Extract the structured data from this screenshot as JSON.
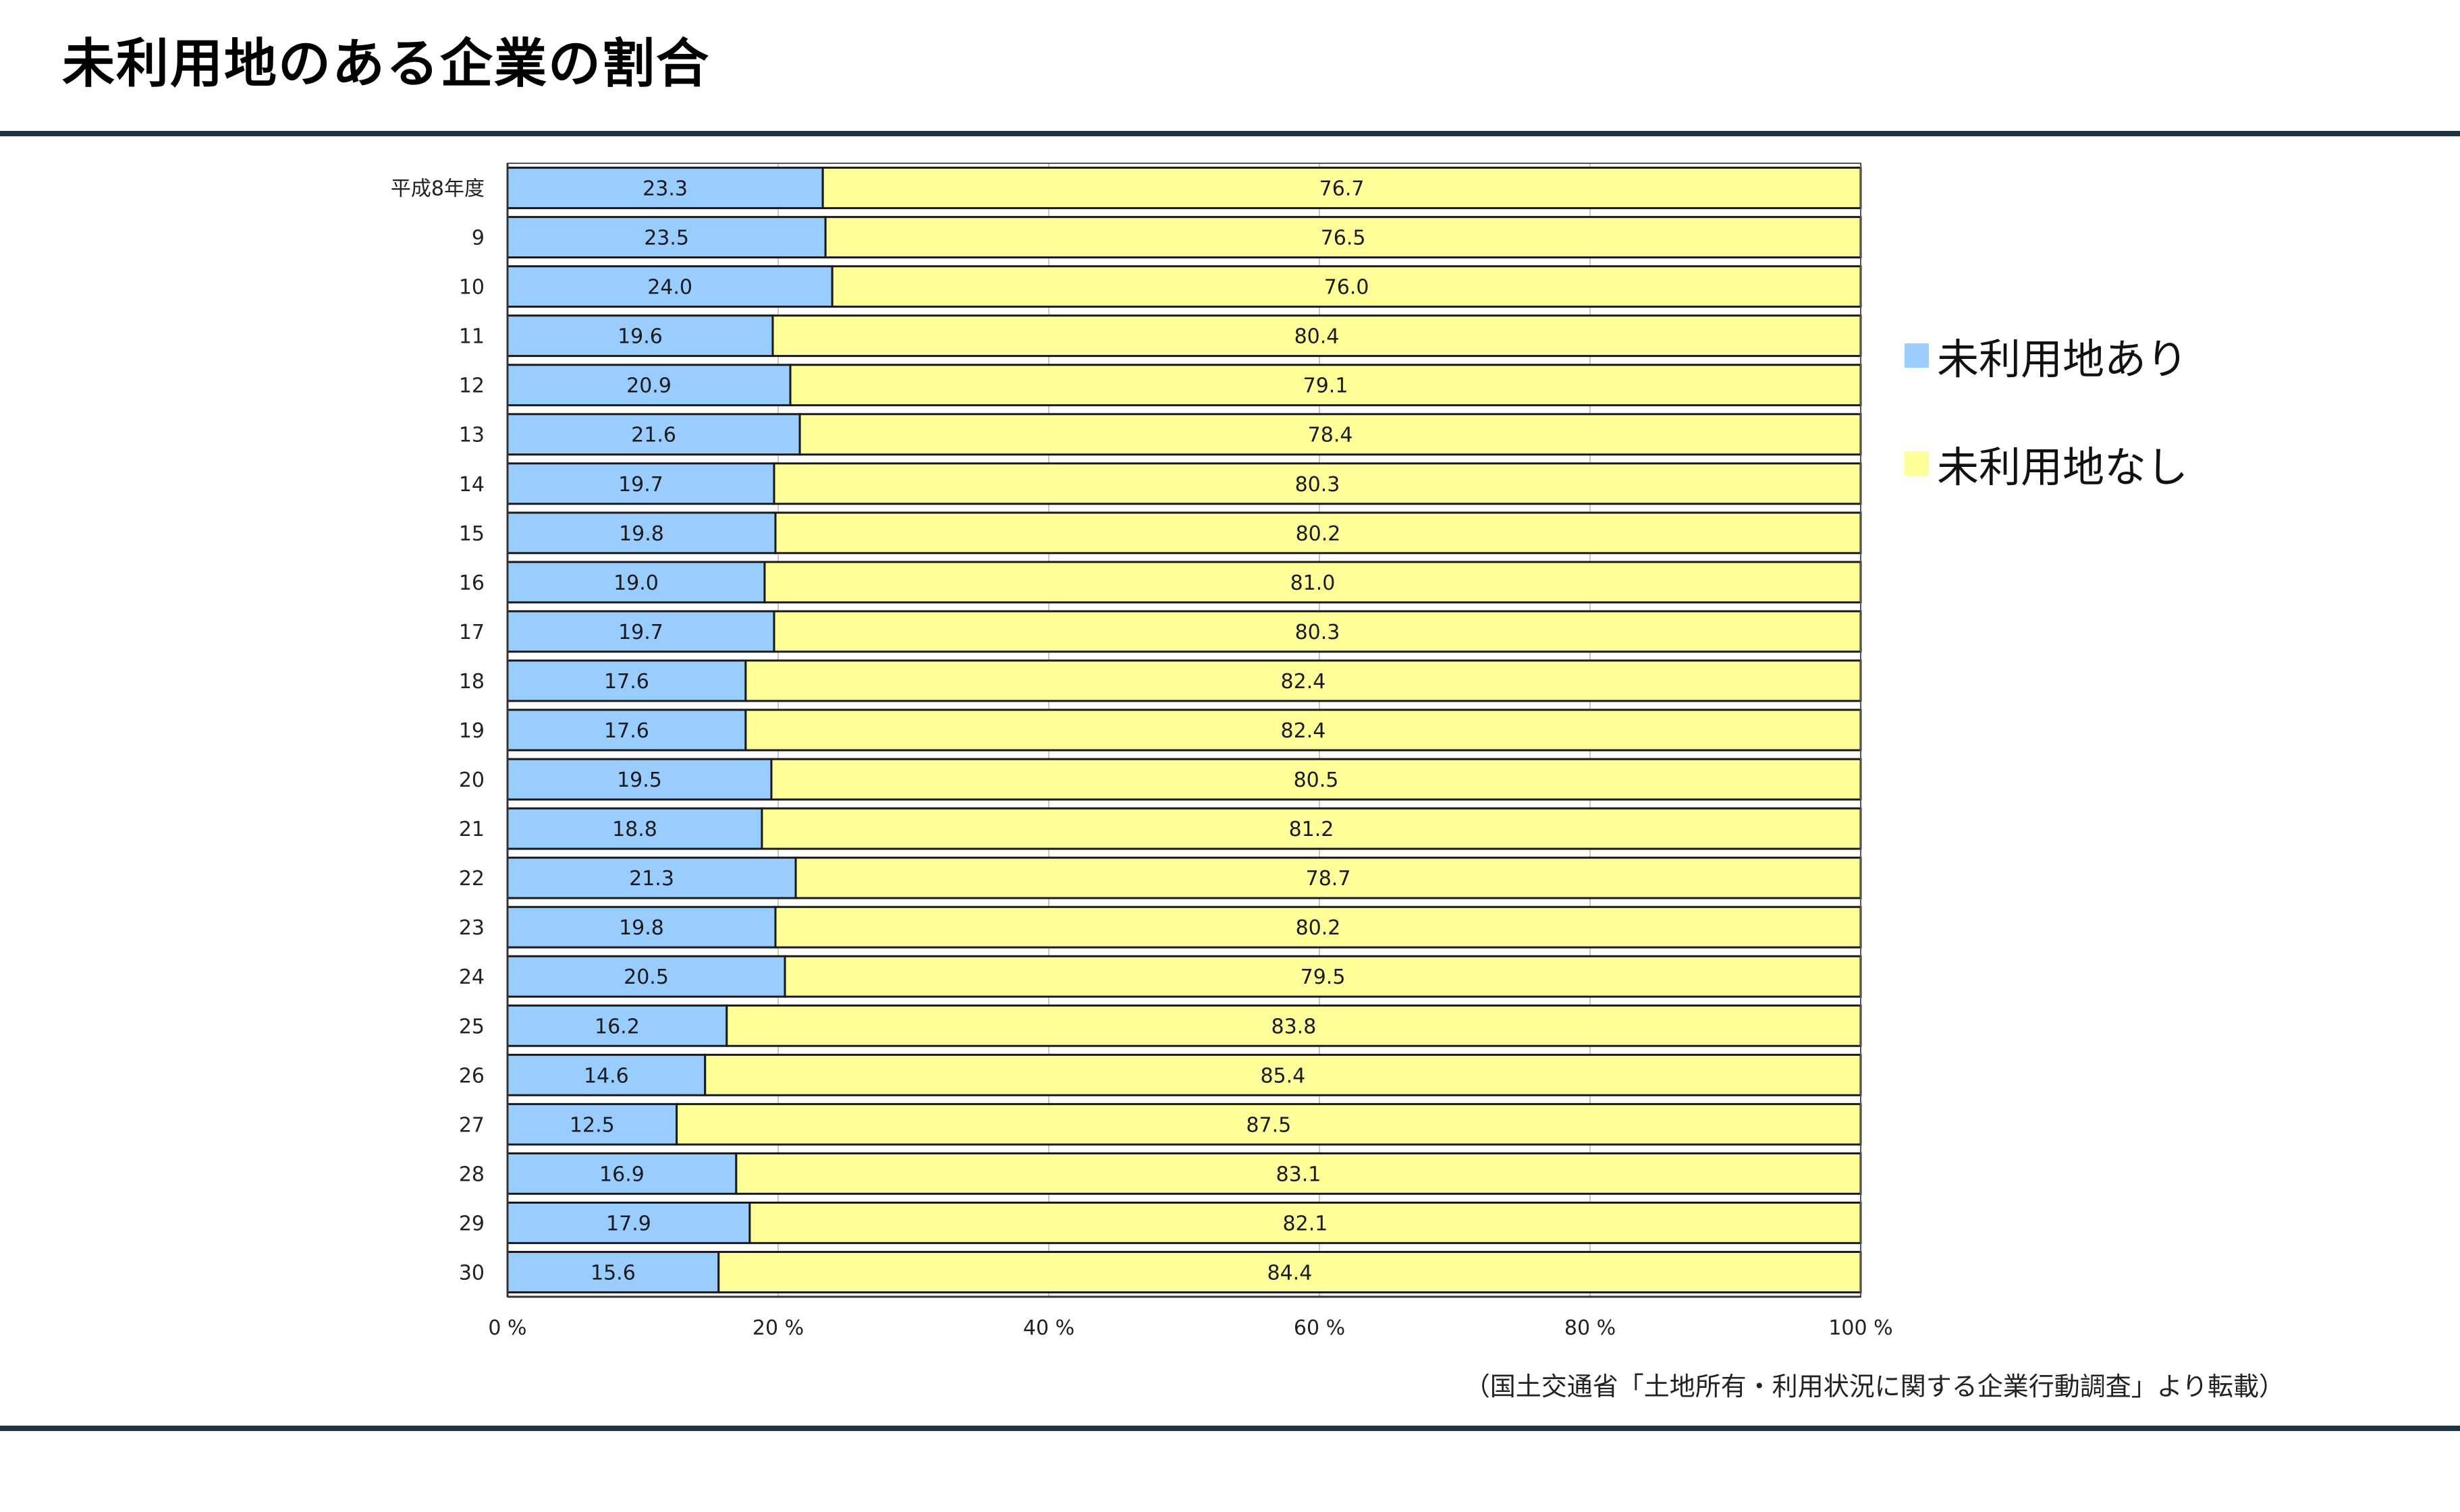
{
  "page": {
    "title": "未利用地のある企業の割合",
    "source_note": "（国土交通省「土地所有・利用状況に関する企業行動調査」より転載）"
  },
  "legend": {
    "items": [
      {
        "label": "未利用地あり",
        "color": "#99ccff"
      },
      {
        "label": "未利用地なし",
        "color": "#ffff99"
      }
    ]
  },
  "chart_data": {
    "type": "bar",
    "orientation": "horizontal",
    "stacked": "percent",
    "categories": [
      "平成8年度",
      "9",
      "10",
      "11",
      "12",
      "13",
      "14",
      "15",
      "16",
      "17",
      "18",
      "19",
      "20",
      "21",
      "22",
      "23",
      "24",
      "25",
      "26",
      "27",
      "28",
      "29",
      "30"
    ],
    "series": [
      {
        "name": "未利用地あり",
        "color": "#99ccff",
        "values": [
          23.3,
          23.5,
          24.0,
          19.6,
          20.9,
          21.6,
          19.7,
          19.8,
          19.0,
          19.7,
          17.6,
          17.6,
          19.5,
          18.8,
          21.3,
          19.8,
          20.5,
          16.2,
          14.6,
          12.5,
          16.9,
          17.9,
          15.6
        ],
        "labels": [
          "23.3",
          "23.5",
          "24.0",
          "19.6",
          "20.9",
          "21.6",
          "19.7",
          "19.8",
          "19.0",
          "19.7",
          "17.6",
          "17.6",
          "19.5",
          "18.8",
          "21.3",
          "19.8",
          "20.5",
          "16.2",
          "14.6",
          "12.5",
          "16.9",
          "17.9",
          "15.6"
        ]
      },
      {
        "name": "未利用地なし",
        "color": "#ffff99",
        "values": [
          76.7,
          76.5,
          76.0,
          80.4,
          79.1,
          78.4,
          80.3,
          80.2,
          81.0,
          80.3,
          82.4,
          82.4,
          80.5,
          81.2,
          78.7,
          80.2,
          79.5,
          83.8,
          85.4,
          87.5,
          83.1,
          82.1,
          84.4
        ],
        "labels": [
          "76.7",
          "76.5",
          "76.0",
          "80.4",
          "79.1",
          "78.4",
          "80.3",
          "80.2",
          "81.0",
          "80.3",
          "82.4",
          "82.4",
          "80.5",
          "81.2",
          "78.7",
          "80.2",
          "79.5",
          "83.8",
          "85.4",
          "87.5",
          "83.1",
          "82.1",
          "84.4"
        ]
      }
    ],
    "xlim": [
      0,
      100
    ],
    "xticks": [
      0,
      20,
      40,
      60,
      80,
      100
    ],
    "xtick_labels": [
      "0 %",
      "20 %",
      "40 %",
      "60 %",
      "80 %",
      "100 %"
    ],
    "xgrid": true,
    "legend_position": "right",
    "title": "",
    "xlabel": "",
    "ylabel": ""
  }
}
